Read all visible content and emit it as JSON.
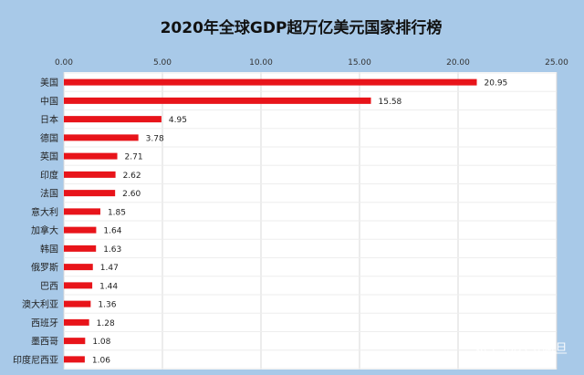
{
  "chart_data": {
    "type": "bar",
    "orientation": "horizontal",
    "title": "2020年全球GDP超万亿美元国家排行榜",
    "categories": [
      "美国",
      "中国",
      "日本",
      "德国",
      "英国",
      "印度",
      "法国",
      "意大利",
      "加拿大",
      "韩国",
      "俄罗斯",
      "巴西",
      "澳大利亚",
      "西班牙",
      "墨西哥",
      "印度尼西亚"
    ],
    "values": [
      20.95,
      15.58,
      4.95,
      3.78,
      2.71,
      2.62,
      2.6,
      1.85,
      1.64,
      1.63,
      1.47,
      1.44,
      1.36,
      1.28,
      1.08,
      1.06
    ],
    "data_labels": [
      "20.95",
      "15.58",
      "4.95",
      "3.78",
      "2.71",
      "2.62",
      "2.60",
      "1.85",
      "1.64",
      "1.63",
      "1.47",
      "1.44",
      "1.36",
      "1.28",
      "1.08",
      "1.06"
    ],
    "xlim": [
      0,
      25
    ],
    "xticks": [
      0,
      5,
      10,
      15,
      20,
      25
    ],
    "xtick_labels": [
      "0.00",
      "5.00",
      "10.00",
      "15.00",
      "20.00",
      "25.00"
    ],
    "xaxis_position": "top",
    "grid": true,
    "legend": "none",
    "xlabel": "",
    "ylabel": ""
  },
  "watermark": "知乎 @六爷阿旦",
  "colors": {
    "bar": "#e8141a",
    "background": "#a8c9e8",
    "plot_background": "#ffffff",
    "grid": "#d8d8d8"
  }
}
